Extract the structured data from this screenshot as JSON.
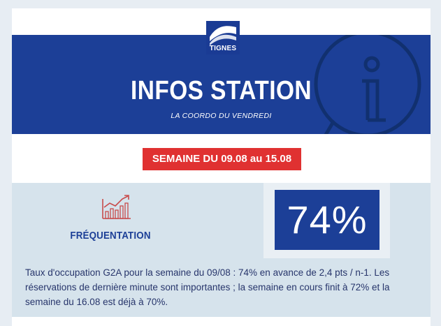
{
  "logo": {
    "text": "TIGNES",
    "icon": "tignes-mountain-logo"
  },
  "banner": {
    "title": "INFOS STATION",
    "subtitle": "LA COORDO DU VENDREDI",
    "background_icon": "info-speech-bubble-icon"
  },
  "week_badge": "SEMAINE DU 09.08 au 15.08",
  "stats": {
    "icon": "growth-chart-icon",
    "label": "FRÉQUENTATION",
    "value": "74%",
    "description": "Taux d'occupation G2A pour la semaine du 09/08 : 74% en avance de 2,4 pts / n-1. Les réservations de dernière minute sont importantes ; la semaine en cours finit à 72% et la semaine du 16.08 est déjà à 70%."
  },
  "colors": {
    "page_background": "#e7edf3",
    "primary_blue": "#1c3f97",
    "badge_red": "#e03131",
    "stats_background": "#d6e3ec",
    "text_dark": "#27356b"
  }
}
